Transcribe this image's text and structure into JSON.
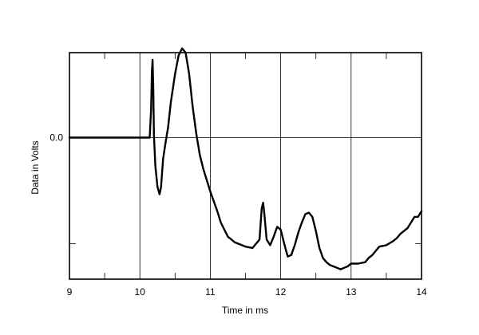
{
  "chart_data": {
    "type": "line",
    "title": "",
    "xlabel": "Time in ms",
    "ylabel": "Data in Volts",
    "xlim": [
      9,
      14
    ],
    "ylim": [
      -1.0,
      0.6
    ],
    "x_ticks": [
      9,
      10,
      11,
      12,
      13,
      14
    ],
    "x_tick_labels": [
      "9",
      "10",
      "11",
      "12",
      "13",
      "14"
    ],
    "y_tick_labels": [
      {
        "value": 0.0,
        "label": "0.0"
      }
    ],
    "y_minor_ticks": [
      -0.75
    ],
    "grid": true,
    "series": [
      {
        "x": [
          9.0,
          10.05,
          10.14,
          10.16,
          10.17,
          10.18,
          10.19,
          10.2,
          10.22,
          10.25,
          10.28,
          10.3,
          10.33,
          10.37,
          10.4,
          10.44,
          10.5,
          10.55,
          10.6,
          10.65,
          10.7,
          10.75,
          10.8,
          10.85,
          10.9,
          10.95,
          11.0,
          11.05,
          11.1,
          11.15,
          11.2,
          11.25,
          11.3,
          11.35,
          11.4,
          11.5,
          11.6,
          11.7,
          11.73,
          11.75,
          11.77,
          11.8,
          11.85,
          11.9,
          11.95,
          12.0,
          12.05,
          12.1,
          12.15,
          12.2,
          12.25,
          12.3,
          12.35,
          12.4,
          12.45,
          12.5,
          12.55,
          12.6,
          12.65,
          12.7,
          12.75,
          12.8,
          12.85,
          12.9,
          12.95,
          13.0,
          13.1,
          13.2,
          13.25,
          13.3,
          13.35,
          13.4,
          13.5,
          13.6,
          13.65,
          13.7,
          13.75,
          13.8,
          13.85,
          13.9,
          13.95,
          14.0
        ],
        "y": [
          0.0,
          0.0,
          0.0,
          0.2,
          0.45,
          0.55,
          0.35,
          0.02,
          -0.2,
          -0.35,
          -0.4,
          -0.35,
          -0.15,
          -0.02,
          0.07,
          0.25,
          0.45,
          0.58,
          0.63,
          0.6,
          0.45,
          0.22,
          0.03,
          -0.12,
          -0.22,
          -0.3,
          -0.38,
          -0.45,
          -0.52,
          -0.6,
          -0.65,
          -0.7,
          -0.72,
          -0.74,
          -0.75,
          -0.77,
          -0.78,
          -0.72,
          -0.5,
          -0.46,
          -0.55,
          -0.72,
          -0.76,
          -0.7,
          -0.63,
          -0.65,
          -0.75,
          -0.84,
          -0.83,
          -0.76,
          -0.67,
          -0.6,
          -0.54,
          -0.53,
          -0.56,
          -0.66,
          -0.78,
          -0.85,
          -0.88,
          -0.9,
          -0.91,
          -0.92,
          -0.93,
          -0.92,
          -0.91,
          -0.89,
          -0.89,
          -0.88,
          -0.85,
          -0.83,
          -0.8,
          -0.77,
          -0.76,
          -0.73,
          -0.71,
          -0.68,
          -0.66,
          -0.64,
          -0.6,
          -0.56,
          -0.56,
          -0.52
        ]
      }
    ]
  }
}
